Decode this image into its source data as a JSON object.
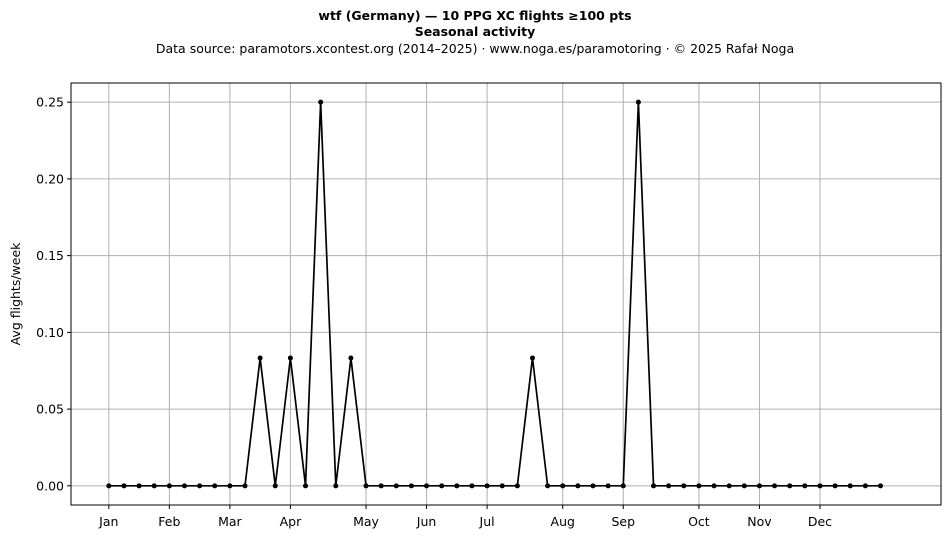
{
  "chart_data": {
    "type": "line",
    "title": "wtf (Germany)  —  10 PPG XC flights ≥100 pts",
    "subtitle": "Seasonal activity",
    "source_line": "Data source: paramotors.xcontest.org (2014–2025)  ·  www.noga.es/paramotoring  ·  © 2025 Rafał Noga",
    "xlabel": "",
    "ylabel": "Avg flights/week",
    "ylim": [
      -0.0125,
      0.2625
    ],
    "xlim": [
      -2.5,
      55
    ],
    "y_ticks": [
      0.0,
      0.05,
      0.1,
      0.15,
      0.2,
      0.25
    ],
    "y_tick_labels": [
      "0.00",
      "0.05",
      "0.10",
      "0.15",
      "0.20",
      "0.25"
    ],
    "x_ticks": [
      0,
      4,
      8,
      12,
      17,
      21,
      25,
      30,
      34,
      39,
      43,
      47
    ],
    "x_tick_labels": [
      "Jan",
      "Feb",
      "Mar",
      "Apr",
      "May",
      "Jun",
      "Jul",
      "Aug",
      "Sep",
      "Oct",
      "Nov",
      "Dec"
    ],
    "grid": true,
    "line_color": "#000000",
    "grid_color": "#b0b0b0",
    "series": [
      {
        "x": [
          0,
          1,
          2,
          3,
          4,
          5,
          6,
          7,
          8,
          9,
          10,
          11,
          12,
          13,
          14,
          15,
          16,
          17,
          18,
          19,
          20,
          21,
          22,
          23,
          24,
          25,
          26,
          27,
          28,
          29,
          30,
          31,
          32,
          33,
          34,
          35,
          36,
          37,
          38,
          39,
          40,
          41,
          42,
          43,
          44,
          45,
          46,
          47,
          48,
          49,
          50,
          51
        ],
        "values": [
          0,
          0,
          0,
          0,
          0,
          0,
          0,
          0,
          0,
          0,
          0.0833,
          0,
          0.0833,
          0,
          0.25,
          0,
          0.0833,
          0,
          0,
          0,
          0,
          0,
          0,
          0,
          0,
          0,
          0,
          0,
          0.0833,
          0,
          0,
          0,
          0,
          0,
          0,
          0.25,
          0,
          0,
          0,
          0,
          0,
          0,
          0,
          0,
          0,
          0,
          0,
          0,
          0,
          0,
          0,
          0
        ]
      }
    ]
  }
}
